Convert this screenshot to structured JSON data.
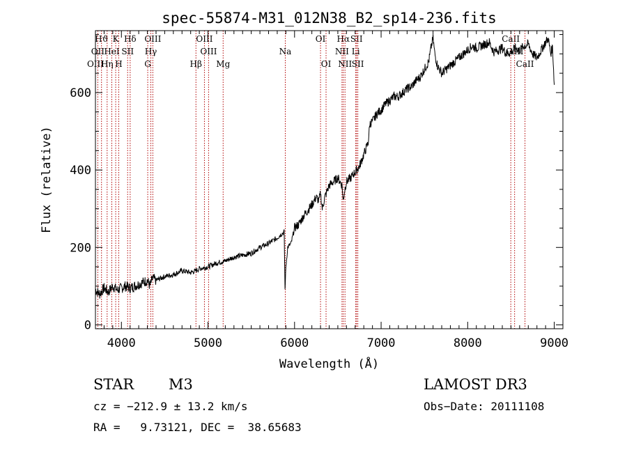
{
  "chart_data": {
    "type": "line",
    "title": "spec-55874-M31_012N38_B2_sp14-236.fits",
    "xlabel": "Wavelength (Å)",
    "ylabel": "Flux (relative)",
    "xlim": [
      3700,
      9100
    ],
    "ylim": [
      -10,
      760
    ],
    "x_ticks": [
      4000,
      5000,
      6000,
      7000,
      8000,
      9000
    ],
    "y_ticks": [
      0,
      200,
      400,
      600
    ],
    "series": [
      {
        "name": "flux",
        "x": [
          3700,
          3750,
          3800,
          3850,
          3900,
          3950,
          4000,
          4050,
          4100,
          4150,
          4200,
          4250,
          4300,
          4330,
          4360,
          4400,
          4500,
          4600,
          4700,
          4800,
          4860,
          4900,
          5000,
          5100,
          5200,
          5300,
          5400,
          5500,
          5600,
          5700,
          5800,
          5850,
          5880,
          5890,
          5900,
          5920,
          5960,
          6000,
          6050,
          6100,
          6150,
          6200,
          6250,
          6280,
          6300,
          6320,
          6350,
          6400,
          6450,
          6500,
          6550,
          6560,
          6580,
          6600,
          6650,
          6700,
          6750,
          6800,
          6850,
          6870,
          6900,
          6950,
          7000,
          7050,
          7100,
          7150,
          7200,
          7250,
          7300,
          7350,
          7400,
          7450,
          7500,
          7550,
          7580,
          7600,
          7620,
          7650,
          7700,
          7750,
          7800,
          7850,
          7900,
          7950,
          8000,
          8050,
          8100,
          8150,
          8200,
          8250,
          8300,
          8350,
          8400,
          8450,
          8500,
          8550,
          8600,
          8650,
          8700,
          8750,
          8800,
          8850,
          8900,
          8930,
          8960,
          8980,
          9000
        ],
        "y": [
          90,
          80,
          95,
          85,
          100,
          90,
          95,
          100,
          95,
          100,
          105,
          110,
          115,
          100,
          120,
          115,
          125,
          130,
          140,
          135,
          140,
          145,
          150,
          160,
          165,
          175,
          180,
          185,
          200,
          210,
          225,
          235,
          240,
          90,
          150,
          200,
          210,
          250,
          260,
          280,
          295,
          310,
          330,
          320,
          340,
          300,
          330,
          360,
          370,
          380,
          360,
          320,
          350,
          370,
          380,
          395,
          410,
          440,
          470,
          520,
          525,
          545,
          555,
          570,
          580,
          590,
          590,
          600,
          610,
          615,
          630,
          640,
          660,
          680,
          720,
          740,
          700,
          670,
          650,
          660,
          670,
          680,
          690,
          700,
          710,
          720,
          715,
          720,
          725,
          730,
          705,
          710,
          715,
          700,
          705,
          715,
          710,
          720,
          725,
          700,
          690,
          710,
          730,
          740,
          700,
          720,
          620
        ]
      }
    ],
    "lines": [
      {
        "label": "Hϑ",
        "x": 3770,
        "row": 0
      },
      {
        "label": "OII",
        "x": 3727,
        "row": 1
      },
      {
        "label": "OIII",
        "x": 3700,
        "row": 2
      },
      {
        "label": "K",
        "x": 3934,
        "row": 0
      },
      {
        "label": "HeI",
        "x": 3889,
        "row": 1
      },
      {
        "label": "Hη",
        "x": 3835,
        "row": 2
      },
      {
        "label": "Hδ",
        "x": 4101,
        "row": 0
      },
      {
        "label": "SII",
        "x": 4072,
        "row": 1
      },
      {
        "label": "H",
        "x": 3969,
        "row": 2
      },
      {
        "label": "OIII",
        "x": 4363,
        "row": 0
      },
      {
        "label": "Hγ",
        "x": 4340,
        "row": 1
      },
      {
        "label": "G",
        "x": 4304,
        "row": 2
      },
      {
        "label": "OIII",
        "x": 4959,
        "row": 0
      },
      {
        "label": "OIII",
        "x": 5007,
        "row": 1
      },
      {
        "label": "Hβ",
        "x": 4861,
        "row": 2
      },
      {
        "label": "Mg",
        "x": 5175,
        "row": 2
      },
      {
        "label": "Na",
        "x": 5893,
        "row": 1
      },
      {
        "label": "OI",
        "x": 6300,
        "row": 0
      },
      {
        "label": "OI",
        "x": 6364,
        "row": 2
      },
      {
        "label": "Hα",
        "x": 6563,
        "row": 0
      },
      {
        "label": "SII",
        "x": 6716,
        "row": 0
      },
      {
        "label": "NII",
        "x": 6548,
        "row": 1
      },
      {
        "label": "Li",
        "x": 6707,
        "row": 1
      },
      {
        "label": "NII",
        "x": 6583,
        "row": 2
      },
      {
        "label": "SII",
        "x": 6731,
        "row": 2
      },
      {
        "label": "CaII",
        "x": 8498,
        "row": 0
      },
      {
        "label": "CaII",
        "x": 8542,
        "row": 1
      },
      {
        "label": "CaII",
        "x": 8662,
        "row": 2
      }
    ]
  },
  "info": {
    "class_label": "STAR",
    "subclass": "M3",
    "survey": "LAMOST DR3",
    "cz": "cz = −212.9 ± 13.2 km/s",
    "obs_date": "Obs−Date: 20111108",
    "coords": "RA =   9.73121, DEC =  38.65683"
  }
}
